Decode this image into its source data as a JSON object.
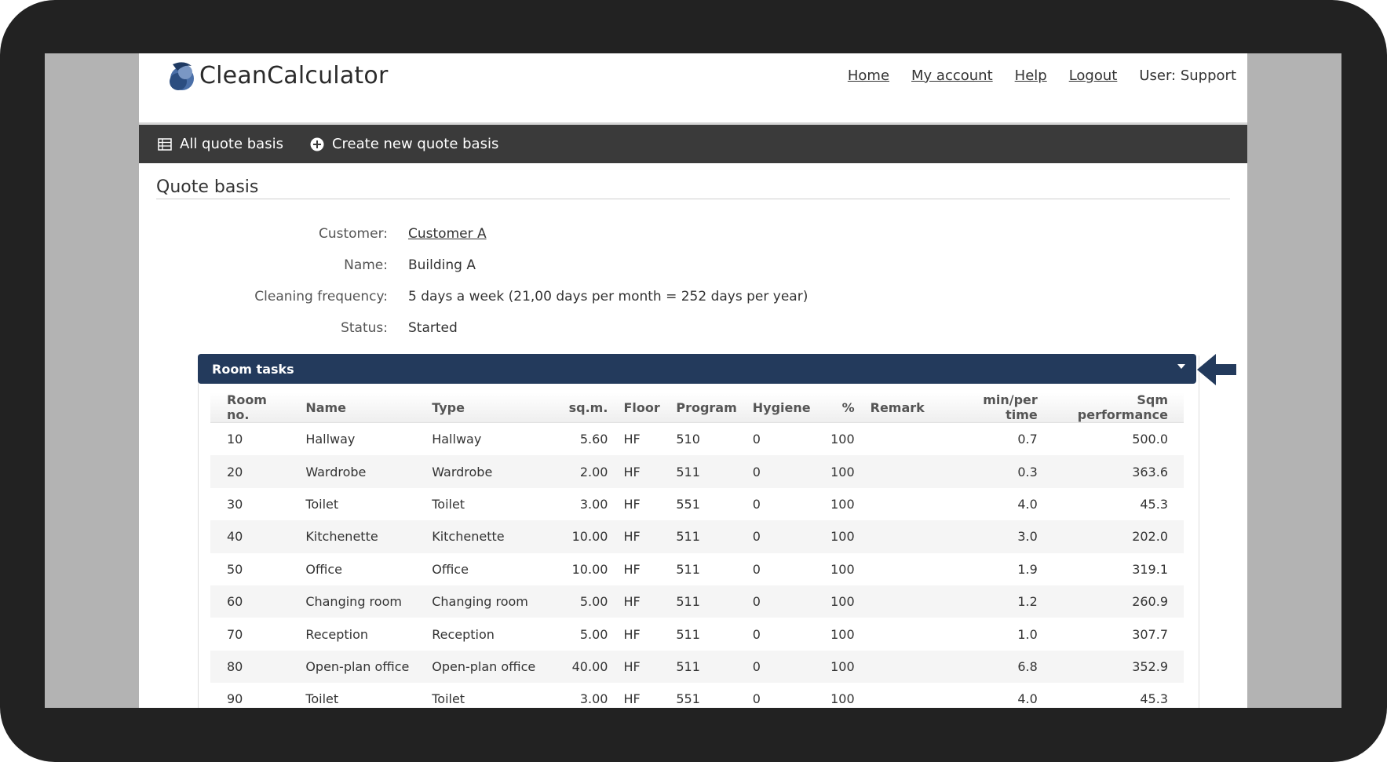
{
  "app": {
    "logo_text": "CleanCalculator",
    "nav": {
      "home": "Home",
      "my_account": "My account",
      "help": "Help",
      "logout": "Logout",
      "user": "User: Support"
    }
  },
  "toolbar": {
    "all_quote_basis": "All quote basis",
    "create_new": "Create new quote basis"
  },
  "page_title": "Quote basis",
  "details": {
    "customer_label": "Customer:",
    "customer_value": "Customer A",
    "name_label": "Name:",
    "name_value": "Building A",
    "frequency_label": "Cleaning frequency:",
    "frequency_value": "5 days a week (21,00 days per month = 252 days per year)",
    "status_label": "Status:",
    "status_value": "Started"
  },
  "room_tasks": {
    "title": "Room tasks",
    "header_color": "#233a5c",
    "columns": [
      "Room no.",
      "Name",
      "Type",
      "sq.m.",
      "Floor",
      "Program",
      "Hygiene",
      "%",
      "Remark",
      "min/per time",
      "Sqm performance"
    ],
    "rows": [
      [
        "10",
        "Hallway",
        "Hallway",
        "5.60",
        "HF",
        "510",
        "0",
        "100",
        "",
        "0.7",
        "500.0"
      ],
      [
        "20",
        "Wardrobe",
        "Wardrobe",
        "2.00",
        "HF",
        "511",
        "0",
        "100",
        "",
        "0.3",
        "363.6"
      ],
      [
        "30",
        "Toilet",
        "Toilet",
        "3.00",
        "HF",
        "551",
        "0",
        "100",
        "",
        "4.0",
        "45.3"
      ],
      [
        "40",
        "Kitchenette",
        "Kitchenette",
        "10.00",
        "HF",
        "511",
        "0",
        "100",
        "",
        "3.0",
        "202.0"
      ],
      [
        "50",
        "Office",
        "Office",
        "10.00",
        "HF",
        "511",
        "0",
        "100",
        "",
        "1.9",
        "319.1"
      ],
      [
        "60",
        "Changing room",
        "Changing room",
        "5.00",
        "HF",
        "511",
        "0",
        "100",
        "",
        "1.2",
        "260.9"
      ],
      [
        "70",
        "Reception",
        "Reception",
        "5.00",
        "HF",
        "511",
        "0",
        "100",
        "",
        "1.0",
        "307.7"
      ],
      [
        "80",
        "Open-plan office",
        "Open-plan office",
        "40.00",
        "HF",
        "511",
        "0",
        "100",
        "",
        "6.8",
        "352.9"
      ],
      [
        "90",
        "Toilet",
        "Toilet",
        "3.00",
        "HF",
        "551",
        "0",
        "100",
        "",
        "4.0",
        "45.3"
      ]
    ]
  }
}
